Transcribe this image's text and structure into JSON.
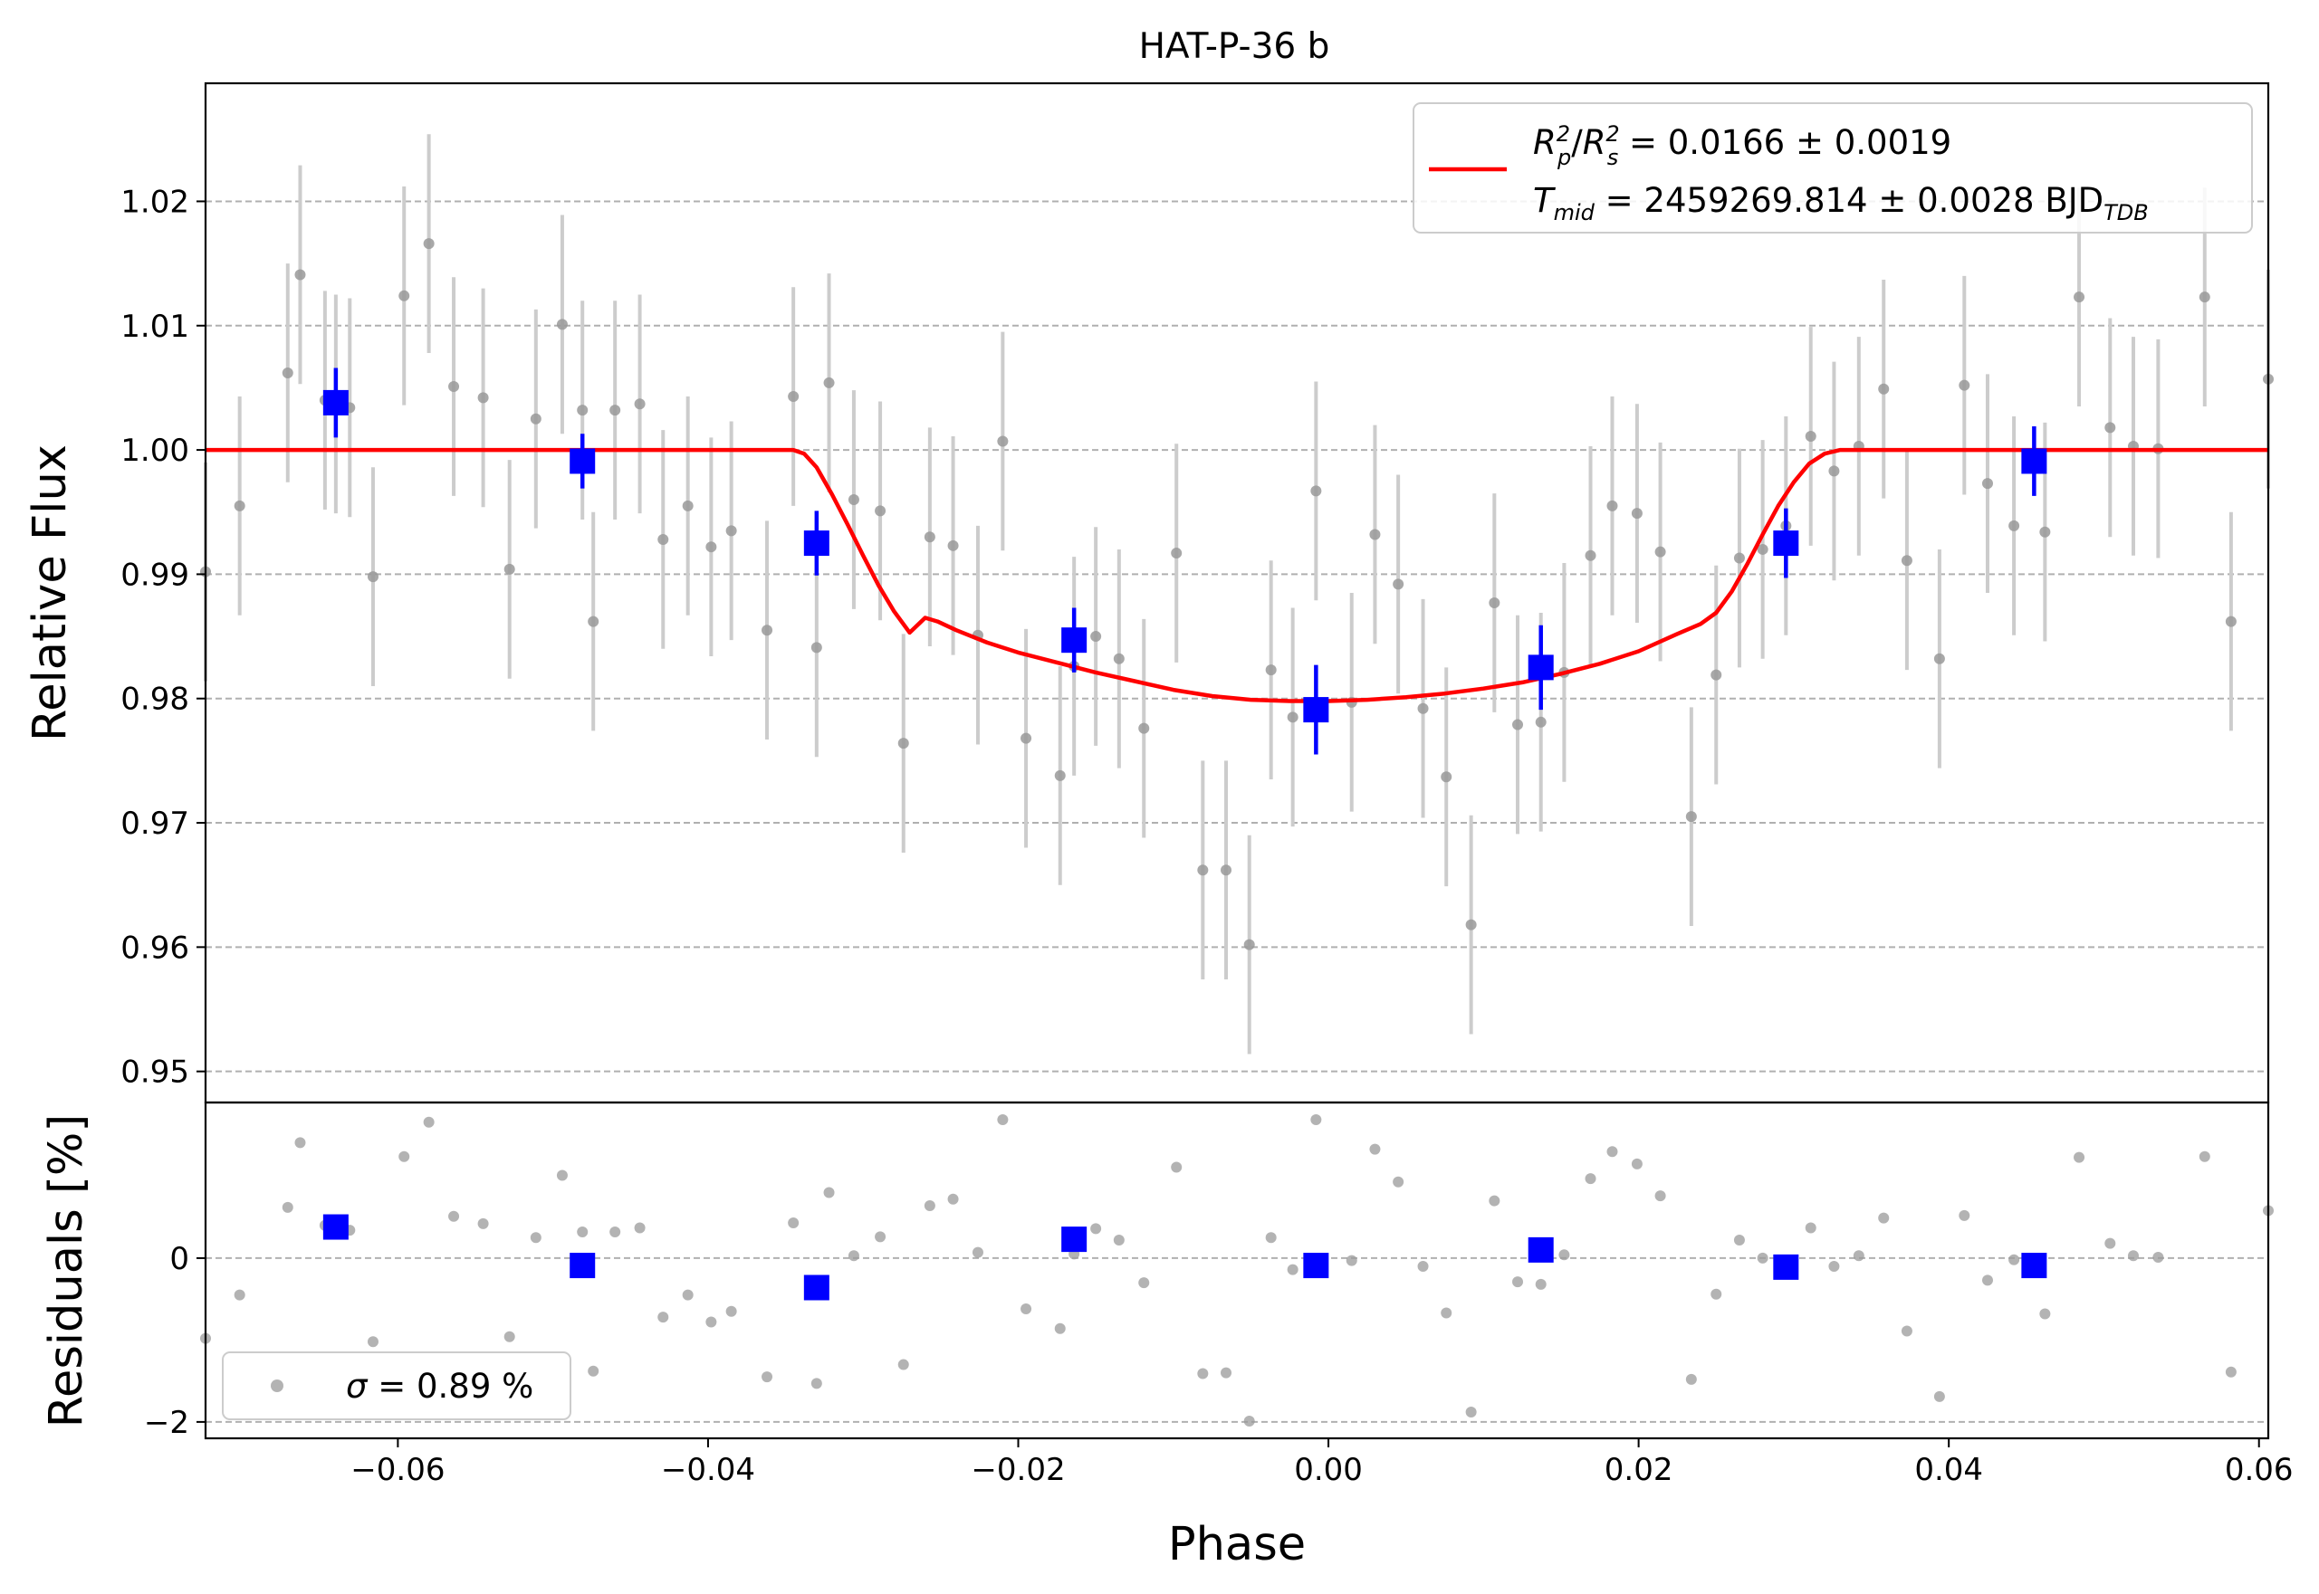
{
  "figure": {
    "title": "HAT-P-36 b",
    "xlabel": "Phase",
    "legend_fit": {
      "rp_rs_value": "0.0166 ± 0.0019",
      "tmid_value": "2459269.814 ± 0.0028",
      "tmid_unit": "BJD"
    },
    "legend_sigma": {
      "value": "0.89 %"
    }
  },
  "chart_data": [
    {
      "type": "scatter",
      "panel": "main",
      "ylabel": "Relative Flux",
      "xlim": [
        -0.0724,
        0.0606
      ],
      "ylim": [
        0.9475,
        1.0295
      ],
      "xticks": [
        -0.06,
        -0.04,
        -0.02,
        0.0,
        0.02,
        0.04,
        0.06
      ],
      "xtick_labels": [
        "−0.06",
        "−0.04",
        "−0.02",
        "0.00",
        "0.02",
        "0.04",
        "0.06"
      ],
      "yticks": [
        0.95,
        0.96,
        0.97,
        0.98,
        0.99,
        1.0,
        1.01,
        1.02
      ],
      "ytick_labels": [
        "0.95",
        "0.96",
        "0.97",
        "0.98",
        "0.99",
        "1.00",
        "1.01",
        "1.02"
      ],
      "grid": "horizontal dashed",
      "legend_position": "top-right",
      "colors": {
        "raw": "#999999",
        "raw_err": "#cccccc",
        "binned": "#0000ff",
        "model": "#ff0000"
      },
      "series": [
        {
          "name": "raw",
          "x": [
            -0.0724,
            -0.0702,
            -0.0671,
            -0.0663,
            -0.0647,
            -0.064,
            -0.0631,
            -0.0616,
            -0.0596,
            -0.058,
            -0.0564,
            -0.0545,
            -0.0528,
            -0.0511,
            -0.0494,
            -0.0481,
            -0.0474,
            -0.046,
            -0.0444,
            -0.0429,
            -0.0413,
            -0.0398,
            -0.0385,
            -0.0362,
            -0.0345,
            -0.033,
            -0.0322,
            -0.0306,
            -0.0289,
            -0.0274,
            -0.0257,
            -0.0242,
            -0.0226,
            -0.021,
            -0.0195,
            -0.0173,
            -0.0164,
            -0.015,
            -0.0135,
            -0.0119,
            -0.0098,
            -0.0081,
            -0.0066,
            -0.0051,
            -0.0037,
            -0.0023,
            -0.0008,
            0.0015,
            0.003,
            0.0045,
            0.0061,
            0.0076,
            0.0092,
            0.0107,
            0.0122,
            0.0137,
            0.0152,
            0.0169,
            0.0183,
            0.0199,
            0.0214,
            0.0234,
            0.025,
            0.0265,
            0.028,
            0.0295,
            0.0311,
            0.0326,
            0.0342,
            0.0358,
            0.0373,
            0.0394,
            0.041,
            0.0425,
            0.0442,
            0.0462,
            0.0484,
            0.0504,
            0.0519,
            0.0535,
            0.0565,
            0.0582,
            0.0606
          ],
          "y": [
            0.9902,
            0.9955,
            1.0062,
            1.0141,
            1.004,
            1.0037,
            1.0034,
            0.9898,
            1.0124,
            1.0166,
            1.0051,
            1.0042,
            0.9904,
            1.0025,
            1.0101,
            1.0032,
            0.9862,
            1.0032,
            1.0037,
            0.9928,
            0.9955,
            0.9922,
            0.9935,
            0.9855,
            1.0043,
            0.9841,
            1.0054,
            0.996,
            0.9951,
            0.9764,
            0.993,
            0.9923,
            0.9851,
            1.0007,
            0.9768,
            0.9738,
            0.9826,
            0.985,
            0.9832,
            0.9776,
            0.9917,
            0.9662,
            0.9662,
            0.9602,
            0.9823,
            0.9785,
            0.9967,
            0.9797,
            0.9932,
            0.9892,
            0.9792,
            0.9737,
            0.9618,
            0.9877,
            0.9779,
            0.9781,
            0.9821,
            0.9915,
            0.9955,
            0.9949,
            0.9918,
            0.9705,
            0.9819,
            0.9913,
            0.992,
            0.9939,
            1.0011,
            0.9983,
            1.0003,
            1.0049,
            0.9911,
            0.9832,
            1.0052,
            0.9973,
            0.9939,
            0.9934,
            1.0123,
            1.0018,
            1.0003,
            1.0001,
            1.0123,
            0.9862,
            1.0057
          ],
          "yerr": 0.0088
        },
        {
          "name": "binned",
          "x": [
            -0.064,
            -0.0481,
            -0.033,
            -0.0164,
            -0.0008,
            0.0137,
            0.0295,
            0.0455
          ],
          "y": [
            1.0038,
            0.9991,
            0.9925,
            0.9847,
            0.9791,
            0.9825,
            0.9925,
            0.9991
          ],
          "yerr": [
            0.0028,
            0.0022,
            0.0026,
            0.0026,
            0.0036,
            0.0034,
            0.0028,
            0.0028
          ]
        },
        {
          "name": "model",
          "x": [
            -0.0724,
            -0.0345,
            -0.0338,
            -0.033,
            -0.032,
            -0.031,
            -0.03,
            -0.029,
            -0.028,
            -0.027,
            -0.026,
            -0.0252,
            -0.024,
            -0.022,
            -0.02,
            -0.0175,
            -0.015,
            -0.0125,
            -0.01,
            -0.0075,
            -0.005,
            -0.0025,
            0.0,
            0.0025,
            0.005,
            0.0075,
            0.01,
            0.0125,
            0.015,
            0.0175,
            0.02,
            0.0225,
            0.024,
            0.025,
            0.026,
            0.027,
            0.028,
            0.029,
            0.03,
            0.031,
            0.032,
            0.033,
            0.0336,
            0.0345,
            0.0606
          ],
          "y": [
            1.0,
            1.0,
            0.9997,
            0.9986,
            0.9964,
            0.994,
            0.9915,
            0.9891,
            0.987,
            0.9853,
            0.9865,
            0.9862,
            0.9855,
            0.9845,
            0.9837,
            0.9829,
            0.9821,
            0.9814,
            0.9807,
            0.9802,
            0.9799,
            0.9798,
            0.9798,
            0.9799,
            0.9801,
            0.9804,
            0.9808,
            0.9813,
            0.982,
            0.9828,
            0.9838,
            0.9852,
            0.986,
            0.9869,
            0.9886,
            0.9908,
            0.9932,
            0.9955,
            0.9974,
            0.9989,
            0.9997,
            1.0,
            1.0,
            1.0,
            1.0
          ]
        }
      ]
    },
    {
      "type": "scatter",
      "panel": "residuals",
      "ylabel": "Residuals [%]",
      "xlim": [
        -0.0724,
        0.0606
      ],
      "ylim": [
        -2.2,
        1.9
      ],
      "yticks": [
        -2,
        0
      ],
      "ytick_labels": [
        "−2",
        "0"
      ],
      "grid": "horizontal dashed",
      "legend_position": "bottom-left",
      "series": [
        {
          "name": "raw",
          "x": [
            -0.0724,
            -0.0702,
            -0.0671,
            -0.0663,
            -0.0647,
            -0.064,
            -0.0631,
            -0.0616,
            -0.0596,
            -0.058,
            -0.0564,
            -0.0545,
            -0.0528,
            -0.0511,
            -0.0494,
            -0.0481,
            -0.0474,
            -0.046,
            -0.0444,
            -0.0429,
            -0.0413,
            -0.0398,
            -0.0385,
            -0.0362,
            -0.0345,
            -0.033,
            -0.0322,
            -0.0306,
            -0.0289,
            -0.0274,
            -0.0257,
            -0.0242,
            -0.0226,
            -0.021,
            -0.0195,
            -0.0173,
            -0.0164,
            -0.015,
            -0.0135,
            -0.0119,
            -0.0098,
            -0.0081,
            -0.0066,
            -0.0051,
            -0.0037,
            -0.0023,
            -0.0008,
            0.0015,
            0.003,
            0.0045,
            0.0061,
            0.0076,
            0.0092,
            0.0107,
            0.0122,
            0.0137,
            0.0152,
            0.0169,
            0.0183,
            0.0199,
            0.0214,
            0.0234,
            0.025,
            0.0265,
            0.028,
            0.0295,
            0.0311,
            0.0326,
            0.0342,
            0.0358,
            0.0373,
            0.0394,
            0.041,
            0.0425,
            0.0442,
            0.0462,
            0.0484,
            0.0504,
            0.0519,
            0.0535,
            0.0565,
            0.0582,
            0.0606
          ],
          "y": [
            -0.98,
            -0.45,
            0.62,
            1.41,
            0.4,
            0.37,
            0.34,
            -1.02,
            1.24,
            1.66,
            0.51,
            0.42,
            -0.96,
            0.25,
            1.01,
            0.32,
            -1.38,
            0.32,
            0.37,
            -0.72,
            -0.45,
            -0.78,
            -0.65,
            -1.45,
            0.43,
            -1.53,
            0.8,
            0.03,
            0.26,
            -1.3,
            0.64,
            0.72,
            0.07,
            1.69,
            -0.62,
            -0.86,
            0.05,
            0.36,
            0.22,
            -0.3,
            1.11,
            -1.41,
            -1.4,
            -1.99,
            0.25,
            -0.14,
            1.69,
            -0.03,
            1.33,
            0.93,
            -0.1,
            -0.67,
            -1.88,
            0.7,
            -0.29,
            -0.32,
            0.04,
            0.97,
            1.3,
            1.15,
            0.76,
            -1.48,
            -0.44,
            0.22,
            0.0,
            -0.12,
            0.37,
            -0.1,
            0.03,
            0.49,
            -0.89,
            -1.69,
            0.52,
            -0.27,
            -0.02,
            -0.68,
            1.23,
            0.18,
            0.03,
            0.01,
            1.24,
            -1.39,
            0.58
          ]
        },
        {
          "name": "binned",
          "x": [
            -0.064,
            -0.0481,
            -0.033,
            -0.0164,
            -0.0008,
            0.0137,
            0.0295,
            0.0455
          ],
          "y": [
            0.38,
            -0.09,
            -0.36,
            0.23,
            -0.09,
            0.1,
            -0.11,
            -0.09
          ]
        }
      ]
    }
  ]
}
